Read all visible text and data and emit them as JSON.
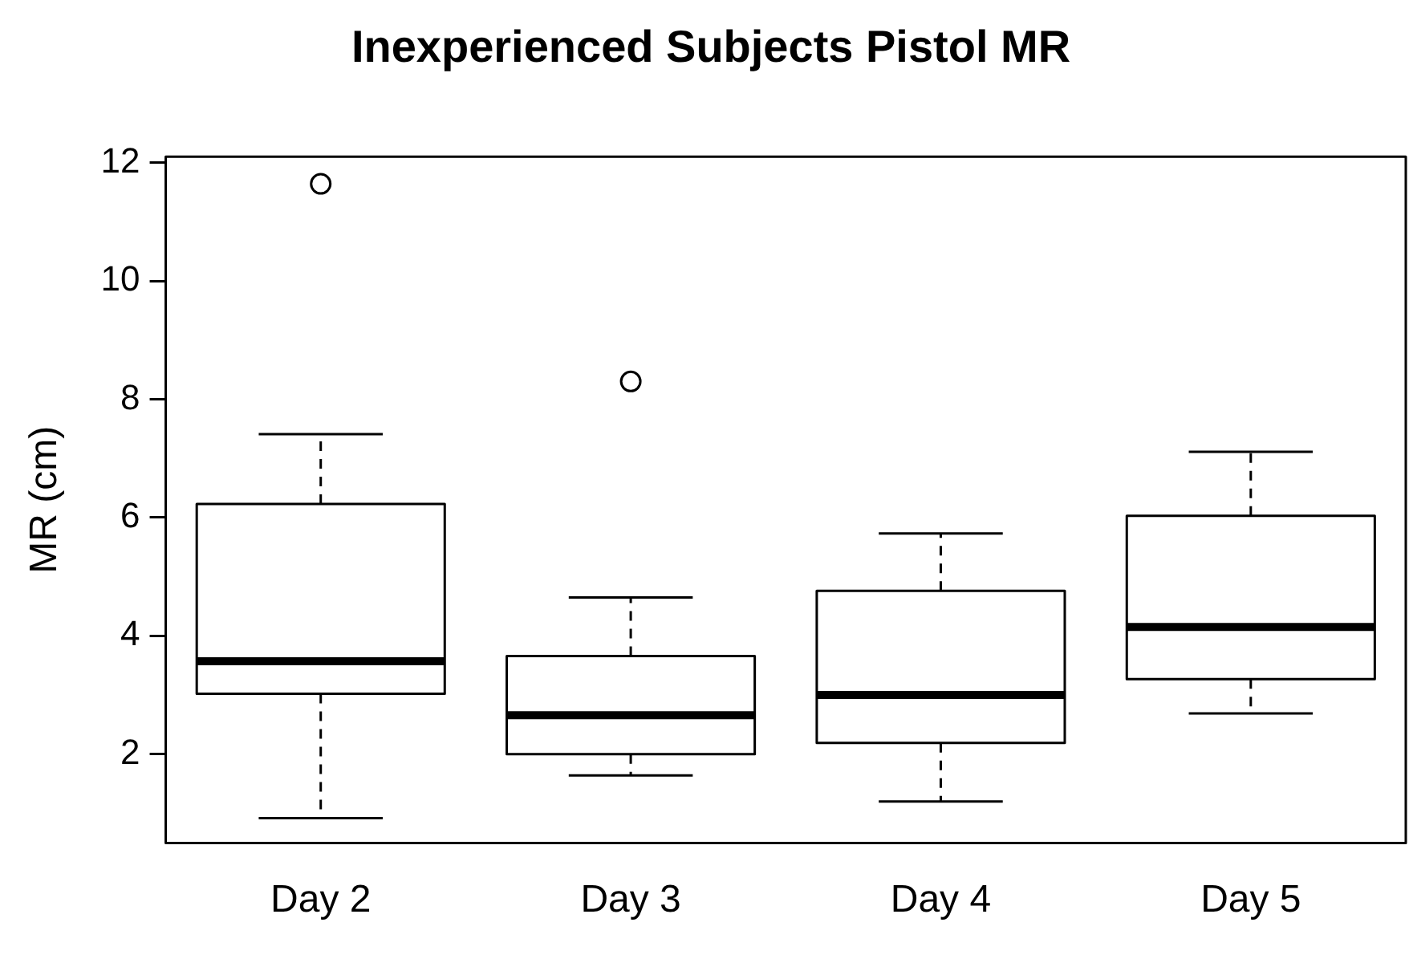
{
  "chart_data": {
    "type": "box",
    "title": "Inexperienced Subjects Pistol MR",
    "ylabel": "MR (cm)",
    "categories": [
      "Day 2",
      "Day 3",
      "Day 4",
      "Day 5"
    ],
    "boxes": [
      {
        "low": 0.92,
        "q1": 3.02,
        "median": 3.57,
        "q3": 6.23,
        "high": 7.41,
        "outliers": [
          11.64
        ]
      },
      {
        "low": 1.64,
        "q1": 2.0,
        "median": 2.66,
        "q3": 3.66,
        "high": 4.65,
        "outliers": [
          8.3
        ]
      },
      {
        "low": 1.2,
        "q1": 2.19,
        "median": 3.0,
        "q3": 4.76,
        "high": 5.73
      },
      {
        "low": 2.69,
        "q1": 3.27,
        "median": 4.15,
        "q3": 6.03,
        "high": 7.11
      }
    ],
    "color": "#000000",
    "ylim": [
      0.5,
      12.1
    ],
    "yticks": [
      2,
      4,
      6,
      8,
      10,
      12
    ],
    "grid": false,
    "legend": false
  }
}
